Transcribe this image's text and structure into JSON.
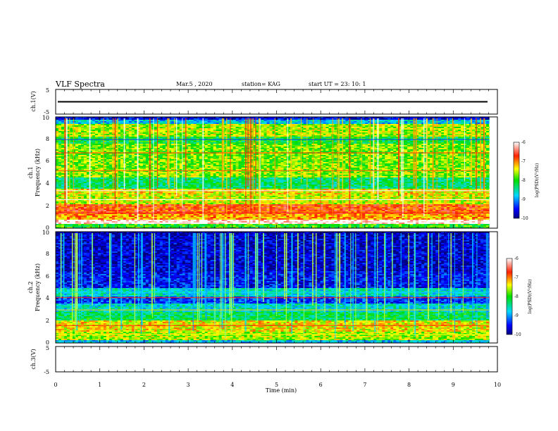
{
  "chart_data": {
    "type": "heatmap",
    "title": "VLF Spectra",
    "date_label": "Mar.5 , 2020",
    "station_label": "station= KAG",
    "start_label": "start UT = 23: 10: 1",
    "x_axis": {
      "label": "Time (min)",
      "range": [
        0,
        10
      ],
      "ticks": [
        0,
        1,
        2,
        3,
        4,
        5,
        6,
        7,
        8,
        9,
        10
      ],
      "tick_labels": [
        "0",
        "1",
        "2",
        "3",
        "4",
        "5",
        "6",
        "7",
        "8",
        "9",
        "10"
      ]
    },
    "panels": [
      {
        "id": "ch1-waveform",
        "type": "line",
        "ylabel": "ch.1(V)",
        "ylim": [
          -5,
          5
        ],
        "tick_labels": [
          "5",
          "-5"
        ],
        "signal_level": 0
      },
      {
        "id": "ch1-spectrogram",
        "type": "heatmap",
        "ylabel_line1": "ch.1",
        "ylabel_line2": "Frequency (kHz)",
        "ylim": [
          0,
          10
        ],
        "tick_labels": [
          "0",
          "2",
          "4",
          "6",
          "8",
          "10"
        ],
        "colorbar": {
          "label": "log(PSD)(V²/Hz)",
          "range": [
            -10,
            -6
          ],
          "tick_labels": [
            "-6",
            "-7",
            "-8",
            "-9",
            "-10"
          ]
        }
      },
      {
        "id": "ch2-spectrogram",
        "type": "heatmap",
        "ylabel_line1": "ch.2",
        "ylabel_line2": "Frequency (kHz)",
        "ylim": [
          0,
          10
        ],
        "tick_labels": [
          "0",
          "2",
          "4",
          "6",
          "8",
          "10"
        ],
        "colorbar": {
          "label": "log(PSD)(V²/Hz)",
          "range": [
            -10,
            -6
          ],
          "tick_labels": [
            "-6",
            "-7",
            "-8",
            "-9",
            "-10"
          ]
        }
      },
      {
        "id": "ch3-waveform",
        "type": "line",
        "ylabel": "ch.3(V)",
        "ylim": [
          -5,
          5
        ],
        "tick_labels": [
          "5",
          "-5"
        ],
        "signal_level": 0
      }
    ]
  }
}
